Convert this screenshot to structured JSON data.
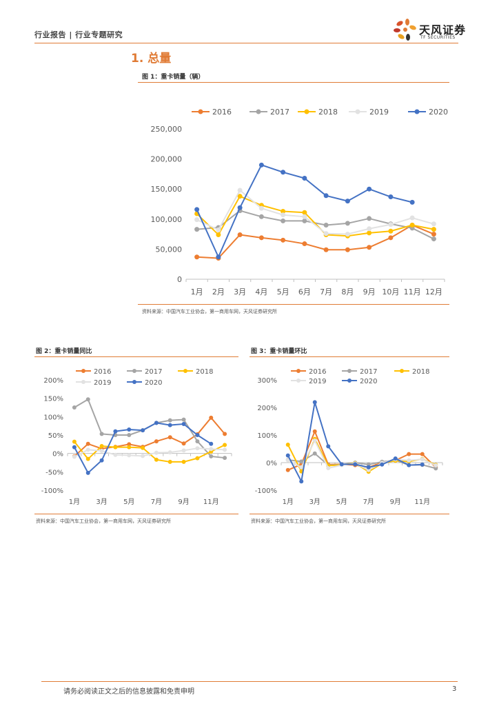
{
  "header": {
    "left_text": "行业报告 | 行业专题研究",
    "logo_name": "天风证券",
    "logo_sub": "TF SECURITIES"
  },
  "section_title": "1. 总量",
  "figures": {
    "fig1": {
      "title": "图 1：重卡销量（辆）",
      "source": "资料来源：中国汽车工业协会，第一商用车网，天风证券研究所"
    },
    "fig2": {
      "title": "图 2：重卡销量同比",
      "source": "资料来源：中国汽车工业协会，第一商用车网，天风证券研究所"
    },
    "fig3": {
      "title": "图 3：重卡销量环比",
      "source": "资料来源：中国汽车工业协会，第一商用车网，天风证券研究所"
    }
  },
  "colors": {
    "2016": "#ED7D31",
    "2017": "#A5A5A5",
    "2018": "#FFC000",
    "2019": "#E2E2E2",
    "2020": "#4472C4",
    "accent": "#e07b35"
  },
  "chart_data": [
    {
      "id": "fig1",
      "type": "line",
      "title": "图 1：重卡销量（辆）",
      "categories": [
        "1月",
        "2月",
        "3月",
        "4月",
        "5月",
        "6月",
        "7月",
        "8月",
        "9月",
        "10月",
        "11月",
        "12月"
      ],
      "ylim": [
        0,
        250000
      ],
      "yticks": [
        0,
        50000,
        100000,
        150000,
        200000,
        250000
      ],
      "ytick_labels": [
        "0",
        "50,000",
        "100,000",
        "150,000",
        "200,000",
        "250,000"
      ],
      "legend_position": "top",
      "series": [
        {
          "name": "2016",
          "values": [
            37000,
            35000,
            74000,
            69000,
            65000,
            59000,
            49000,
            49000,
            53000,
            69000,
            90000,
            75000
          ]
        },
        {
          "name": "2017",
          "values": [
            83000,
            86000,
            114000,
            104000,
            97000,
            97000,
            90000,
            93000,
            101000,
            92000,
            85000,
            67000
          ]
        },
        {
          "name": "2018",
          "values": [
            109000,
            74000,
            138000,
            123000,
            113000,
            111000,
            74000,
            72000,
            77000,
            80000,
            90000,
            83000
          ]
        },
        {
          "name": "2019",
          "values": [
            99000,
            82000,
            148000,
            118000,
            107000,
            104000,
            76000,
            75000,
            84000,
            91000,
            102000,
            92000
          ]
        },
        {
          "name": "2020",
          "values": [
            116000,
            37000,
            119000,
            190000,
            178000,
            168000,
            139000,
            130000,
            150000,
            137000,
            128000,
            null
          ]
        }
      ]
    },
    {
      "id": "fig2",
      "type": "line",
      "title": "图 2：重卡销量同比",
      "categories": [
        "1月",
        "2月",
        "3月",
        "4月",
        "5月",
        "6月",
        "7月",
        "8月",
        "9月",
        "10月",
        "11月",
        "12月"
      ],
      "xtick_labels": [
        "1月",
        "3月",
        "5月",
        "7月",
        "9月",
        "11月"
      ],
      "ylim": [
        -100,
        200
      ],
      "yticks": [
        -100,
        -50,
        0,
        50,
        100,
        150,
        200
      ],
      "ytick_labels": [
        "-100%",
        "-50%",
        "0%",
        "50%",
        "100%",
        "150%",
        "200%"
      ],
      "legend_position": "top",
      "series": [
        {
          "name": "2016",
          "values": [
            -8,
            26,
            13,
            18,
            25,
            18,
            33,
            44,
            27,
            52,
            97,
            53
          ]
        },
        {
          "name": "2017",
          "values": [
            125,
            147,
            53,
            50,
            50,
            63,
            83,
            90,
            92,
            33,
            -8,
            -12
          ]
        },
        {
          "name": "2018",
          "values": [
            32,
            -15,
            20,
            17,
            17,
            15,
            -17,
            -23,
            -23,
            -13,
            5,
            23
          ]
        },
        {
          "name": "2019",
          "values": [
            -9,
            10,
            7,
            -4,
            -5,
            -7,
            2,
            3,
            8,
            14,
            12,
            10
          ]
        },
        {
          "name": "2020",
          "values": [
            17,
            -53,
            -19,
            60,
            65,
            63,
            83,
            77,
            80,
            50,
            26,
            null
          ]
        }
      ]
    },
    {
      "id": "fig3",
      "type": "line",
      "title": "图 3：重卡销量环比",
      "categories": [
        "1月",
        "2月",
        "3月",
        "4月",
        "5月",
        "6月",
        "7月",
        "8月",
        "9月",
        "10月",
        "11月",
        "12月"
      ],
      "xtick_labels": [
        "1月",
        "3月",
        "5月",
        "7月",
        "9月",
        "11月"
      ],
      "ylim": [
        -100,
        300
      ],
      "yticks": [
        -100,
        0,
        100,
        200,
        300
      ],
      "ytick_labels": [
        "-100%",
        "0%",
        "100%",
        "200%",
        "300%"
      ],
      "legend_position": "top",
      "series": [
        {
          "name": "2016",
          "values": [
            -27,
            -6,
            113,
            -7,
            -6,
            -9,
            -17,
            0,
            8,
            31,
            31,
            -17
          ]
        },
        {
          "name": "2017",
          "values": [
            10,
            4,
            33,
            -9,
            -7,
            0,
            -7,
            3,
            9,
            -9,
            -8,
            -21
          ]
        },
        {
          "name": "2018",
          "values": [
            65,
            -32,
            86,
            -11,
            -8,
            -2,
            -33,
            -3,
            7,
            4,
            13,
            -8
          ]
        },
        {
          "name": "2019",
          "values": [
            9,
            -17,
            80,
            -20,
            -9,
            -3,
            -27,
            -1,
            12,
            8,
            12,
            -10
          ]
        },
        {
          "name": "2020",
          "values": [
            26,
            -68,
            219,
            59,
            -6,
            -6,
            -17,
            -7,
            15,
            -9,
            -7,
            null
          ]
        }
      ]
    }
  ],
  "footer": {
    "text": "请务必阅读正文之后的信息披露和免责申明",
    "page": "3"
  }
}
